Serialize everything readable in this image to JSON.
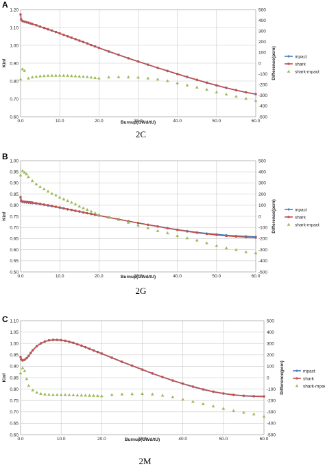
{
  "chart_data": [
    {
      "type": "line",
      "panel_letter": "A",
      "caption": "2C",
      "title": "",
      "xlabel": "Burnup(GWd/tU)",
      "ylabel": "Kinf",
      "y2label": "Difference(pcm)",
      "xlim": [
        0,
        60
      ],
      "ylim": [
        0.6,
        1.2
      ],
      "y2lim": [
        -500,
        500
      ],
      "xticks": [
        "0.0",
        "10.0",
        "20.0",
        "30.0",
        "40.0",
        "50.0",
        "60.0"
      ],
      "yticks": [
        "0.60",
        "0.70",
        "0.80",
        "0.90",
        "1.00",
        "1.10",
        "1.20"
      ],
      "y2ticks": [
        "-500",
        "-400",
        "-300",
        "-200",
        "-100",
        "0",
        "100",
        "200",
        "300",
        "400",
        "500"
      ],
      "legend_position": "right",
      "grid": true,
      "series": [
        {
          "name": "mpact",
          "axis": "left",
          "color": "#4a7ebb",
          "marker": "diamond",
          "x": [
            0,
            0.15,
            0.5,
            1,
            1.5,
            2,
            2.5,
            3,
            4,
            5,
            6,
            7,
            8,
            9,
            10,
            11,
            12,
            13,
            14,
            15,
            16,
            17,
            18,
            19,
            20,
            22.5,
            25,
            27.5,
            30,
            32.5,
            35,
            37.5,
            40,
            42.5,
            45,
            47.5,
            50,
            52.5,
            55,
            57.5,
            60
          ],
          "y": [
            1.172,
            1.144,
            1.135,
            1.132,
            1.129,
            1.126,
            1.122,
            1.119,
            1.112,
            1.104,
            1.097,
            1.089,
            1.082,
            1.074,
            1.066,
            1.058,
            1.05,
            1.042,
            1.034,
            1.026,
            1.018,
            1.01,
            1.001,
            0.993,
            0.985,
            0.965,
            0.946,
            0.927,
            0.909,
            0.891,
            0.873,
            0.856,
            0.839,
            0.822,
            0.806,
            0.79,
            0.775,
            0.761,
            0.748,
            0.736,
            0.726
          ]
        },
        {
          "name": "shark",
          "axis": "left",
          "color": "#c0504d",
          "marker": "square",
          "x": [
            0,
            0.15,
            0.5,
            1,
            1.5,
            2,
            2.5,
            3,
            4,
            5,
            6,
            7,
            8,
            9,
            10,
            11,
            12,
            13,
            14,
            15,
            16,
            17,
            18,
            19,
            20,
            22.5,
            25,
            27.5,
            30,
            32.5,
            35,
            37.5,
            40,
            42.5,
            45,
            47.5,
            50,
            52.5,
            55,
            57.5,
            60
          ],
          "y": [
            1.173,
            1.145,
            1.136,
            1.133,
            1.13,
            1.127,
            1.123,
            1.12,
            1.113,
            1.105,
            1.098,
            1.09,
            1.083,
            1.075,
            1.067,
            1.059,
            1.051,
            1.043,
            1.035,
            1.027,
            1.019,
            1.011,
            1.002,
            0.994,
            0.986,
            0.966,
            0.947,
            0.928,
            0.91,
            0.892,
            0.874,
            0.857,
            0.84,
            0.823,
            0.807,
            0.791,
            0.776,
            0.762,
            0.749,
            0.737,
            0.727
          ]
        },
        {
          "name": "shark-mpact",
          "axis": "right",
          "color": "#9bbb59",
          "marker": "triangle",
          "x": [
            0,
            0.5,
            1,
            2,
            3,
            4,
            5,
            6,
            7,
            8,
            9,
            10,
            11,
            12,
            13,
            14,
            15,
            16,
            17,
            18,
            19,
            20,
            22.5,
            25,
            27.5,
            30,
            32.5,
            35,
            37.5,
            40,
            42.5,
            45,
            47.5,
            50,
            52.5,
            55,
            57.5,
            60
          ],
          "y": [
            -150,
            -55,
            -70,
            -140,
            -130,
            -125,
            -120,
            -118,
            -116,
            -115,
            -115,
            -114,
            -115,
            -116,
            -118,
            -120,
            -122,
            -125,
            -128,
            -132,
            -136,
            -140,
            -130,
            -128,
            -130,
            -132,
            -140,
            -150,
            -165,
            -185,
            -205,
            -225,
            -245,
            -270,
            -290,
            -310,
            -330,
            -350
          ]
        }
      ]
    },
    {
      "type": "line",
      "panel_letter": "B",
      "caption": "2G",
      "title": "",
      "xlabel": "Burnup(GWd/tU)",
      "ylabel": "Kinf",
      "y2label": "Difference(pcm)",
      "xlim": [
        0,
        60
      ],
      "ylim": [
        0.5,
        1.0
      ],
      "y2lim": [
        -500,
        500
      ],
      "xticks": [
        "0.0",
        "10.0",
        "20.0",
        "30.0",
        "40.0",
        "50.0",
        "60.0"
      ],
      "yticks": [
        "0.50",
        "0.55",
        "0.60",
        "0.65",
        "0.70",
        "0.75",
        "0.80",
        "0.85",
        "0.90",
        "0.95",
        "1.00"
      ],
      "y2ticks": [
        "-500",
        "-400",
        "-300",
        "-200",
        "-100",
        "0",
        "100",
        "200",
        "300",
        "400",
        "500"
      ],
      "legend_position": "right",
      "grid": true,
      "series": [
        {
          "name": "mpact",
          "axis": "left",
          "color": "#4a7ebb",
          "marker": "diamond",
          "x": [
            0,
            0.15,
            0.5,
            1,
            1.5,
            2,
            2.5,
            3,
            4,
            5,
            6,
            7,
            8,
            9,
            10,
            11,
            12,
            13,
            14,
            15,
            16,
            17,
            18,
            19,
            20,
            22.5,
            25,
            27.5,
            30,
            32.5,
            35,
            37.5,
            40,
            42.5,
            45,
            47.5,
            50,
            52.5,
            55,
            57.5,
            60
          ],
          "y": [
            0.833,
            0.818,
            0.814,
            0.813,
            0.812,
            0.811,
            0.81,
            0.809,
            0.807,
            0.804,
            0.801,
            0.798,
            0.795,
            0.792,
            0.788,
            0.785,
            0.781,
            0.778,
            0.774,
            0.771,
            0.767,
            0.764,
            0.76,
            0.757,
            0.753,
            0.745,
            0.736,
            0.728,
            0.72,
            0.712,
            0.705,
            0.697,
            0.69,
            0.684,
            0.678,
            0.673,
            0.669,
            0.665,
            0.662,
            0.66,
            0.658
          ]
        },
        {
          "name": "shark",
          "axis": "left",
          "color": "#c0504d",
          "marker": "square",
          "x": [
            0,
            0.15,
            0.5,
            1,
            1.5,
            2,
            2.5,
            3,
            4,
            5,
            6,
            7,
            8,
            9,
            10,
            11,
            12,
            13,
            14,
            15,
            16,
            17,
            18,
            19,
            20,
            22.5,
            25,
            27.5,
            30,
            32.5,
            35,
            37.5,
            40,
            42.5,
            45,
            47.5,
            50,
            52.5,
            55,
            57.5,
            60
          ],
          "y": [
            0.837,
            0.821,
            0.817,
            0.816,
            0.815,
            0.814,
            0.813,
            0.812,
            0.809,
            0.806,
            0.803,
            0.8,
            0.797,
            0.793,
            0.79,
            0.786,
            0.782,
            0.779,
            0.775,
            0.772,
            0.768,
            0.764,
            0.761,
            0.757,
            0.754,
            0.745,
            0.737,
            0.728,
            0.72,
            0.712,
            0.704,
            0.696,
            0.689,
            0.682,
            0.676,
            0.671,
            0.666,
            0.662,
            0.659,
            0.656,
            0.654
          ]
        },
        {
          "name": "shark-mpact",
          "axis": "right",
          "color": "#9bbb59",
          "marker": "triangle",
          "x": [
            0,
            0.5,
            1,
            1.5,
            2,
            3,
            4,
            5,
            6,
            7,
            8,
            9,
            10,
            11,
            12,
            13,
            14,
            15,
            16,
            17,
            18,
            19,
            20,
            22.5,
            25,
            27.5,
            30,
            32.5,
            35,
            37.5,
            40,
            42.5,
            45,
            47.5,
            50,
            52.5,
            55,
            57.5,
            60
          ],
          "y": [
            370,
            410,
            395,
            380,
            355,
            320,
            290,
            265,
            245,
            225,
            205,
            190,
            170,
            155,
            140,
            125,
            110,
            90,
            75,
            60,
            45,
            30,
            15,
            -10,
            -30,
            -55,
            -80,
            -105,
            -130,
            -150,
            -175,
            -195,
            -215,
            -240,
            -265,
            -285,
            -300,
            -320,
            -330
          ]
        }
      ]
    },
    {
      "type": "line",
      "panel_letter": "C",
      "caption": "2M",
      "title": "",
      "xlabel": "Burnup(GWd/tU)",
      "ylabel": "Kinf",
      "y2label": "Difference(pcm)",
      "xlim": [
        0,
        60
      ],
      "ylim": [
        0.6,
        1.1
      ],
      "y2lim": [
        -500,
        500
      ],
      "xticks": [
        "0.0",
        "10.0",
        "20.0",
        "30.0",
        "40.0",
        "50.0",
        "60.0"
      ],
      "yticks": [
        "0.60",
        "0.65",
        "0.70",
        "0.75",
        "0.80",
        "0.85",
        "0.90",
        "0.95",
        "1.00",
        "1.05",
        "1.10"
      ],
      "y2ticks": [
        "-500",
        "-400",
        "-300",
        "-200",
        "-100",
        "0",
        "100",
        "200",
        "300",
        "400",
        "500"
      ],
      "legend_position": "right",
      "grid": true,
      "series": [
        {
          "name": "mpact",
          "axis": "left",
          "color": "#4a7ebb",
          "marker": "diamond",
          "x": [
            0,
            0.15,
            0.5,
            1,
            1.5,
            2,
            2.5,
            3,
            4,
            5,
            6,
            7,
            8,
            9,
            10,
            11,
            12,
            13,
            14,
            15,
            16,
            17,
            18,
            19,
            20,
            22.5,
            25,
            27.5,
            30,
            32.5,
            35,
            37.5,
            40,
            42.5,
            45,
            47.5,
            50,
            52.5,
            55,
            57.5,
            60
          ],
          "y": [
            0.94,
            0.93,
            0.925,
            0.928,
            0.935,
            0.945,
            0.958,
            0.97,
            0.988,
            1.0,
            1.008,
            1.013,
            1.015,
            1.015,
            1.014,
            1.011,
            1.007,
            1.002,
            0.996,
            0.99,
            0.983,
            0.976,
            0.969,
            0.962,
            0.955,
            0.937,
            0.919,
            0.902,
            0.885,
            0.868,
            0.852,
            0.837,
            0.823,
            0.81,
            0.798,
            0.788,
            0.78,
            0.774,
            0.77,
            0.768,
            0.767
          ]
        },
        {
          "name": "shark",
          "axis": "left",
          "color": "#c0504d",
          "marker": "square",
          "x": [
            0,
            0.15,
            0.5,
            1,
            1.5,
            2,
            2.5,
            3,
            4,
            5,
            6,
            7,
            8,
            9,
            10,
            11,
            12,
            13,
            14,
            15,
            16,
            17,
            18,
            19,
            20,
            22.5,
            25,
            27.5,
            30,
            32.5,
            35,
            37.5,
            40,
            42.5,
            45,
            47.5,
            50,
            52.5,
            55,
            57.5,
            60
          ],
          "y": [
            0.941,
            0.931,
            0.926,
            0.929,
            0.936,
            0.946,
            0.959,
            0.971,
            0.989,
            1.001,
            1.009,
            1.014,
            1.016,
            1.016,
            1.015,
            1.012,
            1.008,
            1.003,
            0.997,
            0.991,
            0.984,
            0.977,
            0.97,
            0.963,
            0.956,
            0.938,
            0.92,
            0.903,
            0.886,
            0.869,
            0.853,
            0.838,
            0.824,
            0.811,
            0.799,
            0.789,
            0.781,
            0.775,
            0.771,
            0.769,
            0.768
          ]
        },
        {
          "name": "shark-mpact",
          "axis": "right",
          "color": "#9bbb59",
          "marker": "triangle",
          "x": [
            0,
            0.5,
            1,
            1.5,
            2,
            3,
            4,
            5,
            6,
            7,
            8,
            9,
            10,
            11,
            12,
            13,
            14,
            15,
            16,
            17,
            18,
            19,
            20,
            22.5,
            25,
            27.5,
            30,
            32.5,
            35,
            37.5,
            40,
            42.5,
            45,
            47.5,
            50,
            52.5,
            55,
            57.5,
            60
          ],
          "y": [
            40,
            85,
            60,
            -10,
            -70,
            -110,
            -130,
            -140,
            -145,
            -148,
            -150,
            -150,
            -150,
            -150,
            -151,
            -152,
            -153,
            -154,
            -155,
            -156,
            -157,
            -158,
            -160,
            -150,
            -145,
            -142,
            -140,
            -145,
            -155,
            -170,
            -190,
            -210,
            -230,
            -250,
            -270,
            -290,
            -305,
            -320,
            -340
          ]
        }
      ]
    }
  ]
}
